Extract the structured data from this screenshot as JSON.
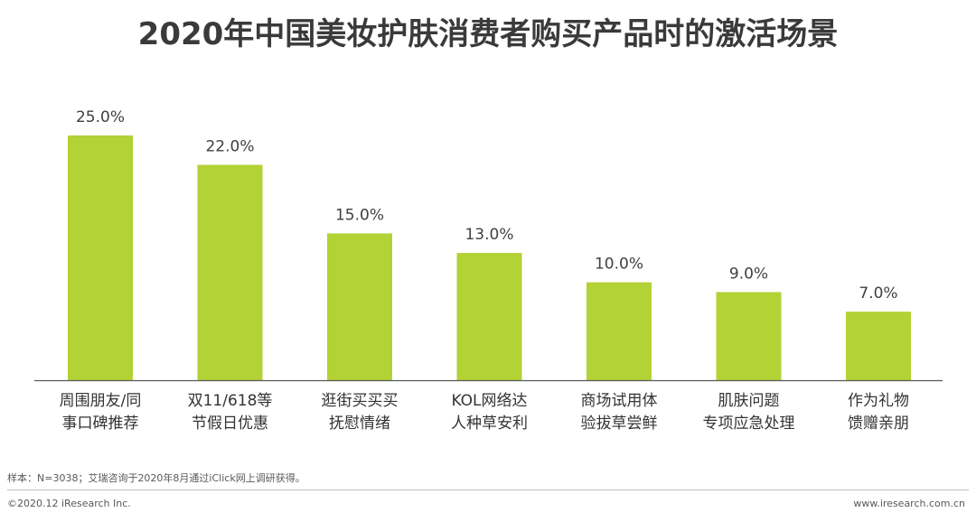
{
  "title": "2020年中国美妆护肤消费者购买产品时的激活场景",
  "chart_data": {
    "type": "bar",
    "title": "2020年中国美妆护肤消费者购买产品时的激活场景",
    "categories": [
      [
        "周围朋友/同",
        "事口碑推荐"
      ],
      [
        "双11/618等",
        "节假日优惠"
      ],
      [
        "逛街买买买",
        "抚慰情绪"
      ],
      [
        "KOL网络达",
        "人种草安利"
      ],
      [
        "商场试用体",
        "验拔草尝鲜"
      ],
      [
        "肌肤问题",
        "专项应急处理"
      ],
      [
        "作为礼物",
        "馈赠亲朋"
      ]
    ],
    "values": [
      25.0,
      22.0,
      15.0,
      13.0,
      10.0,
      9.0,
      7.0
    ],
    "value_labels": [
      "25.0%",
      "22.0%",
      "15.0%",
      "13.0%",
      "10.0%",
      "9.0%",
      "7.0%"
    ],
    "unit": "%",
    "ylim": [
      0,
      25
    ],
    "grid": false,
    "bar_color": "#b2d235",
    "axis_color": "#595959"
  },
  "note": "样本：N=3038；艾瑞咨询于2020年8月通过iClick网上调研获得。",
  "footer": {
    "left": "©2020.12 iResearch Inc.",
    "right": "www.iresearch.com.cn"
  }
}
